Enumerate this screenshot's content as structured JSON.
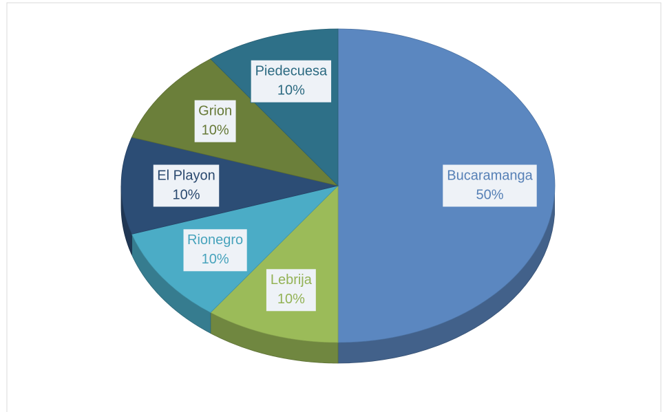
{
  "chart_data": {
    "type": "pie",
    "categories": [
      "Bucaramanga",
      "Lebrija",
      "Rionegro",
      "El Playon",
      "Grion",
      "Piedecuesa"
    ],
    "values": [
      50,
      10,
      10,
      10,
      10,
      10
    ],
    "value_labels": [
      "50%",
      "10%",
      "10%",
      "10%",
      "10%",
      "10%"
    ],
    "colors": [
      "#5b87c0",
      "#9bbb59",
      "#4bacc6",
      "#2c4d75",
      "#6b7f3a",
      "#2e7088"
    ]
  }
}
